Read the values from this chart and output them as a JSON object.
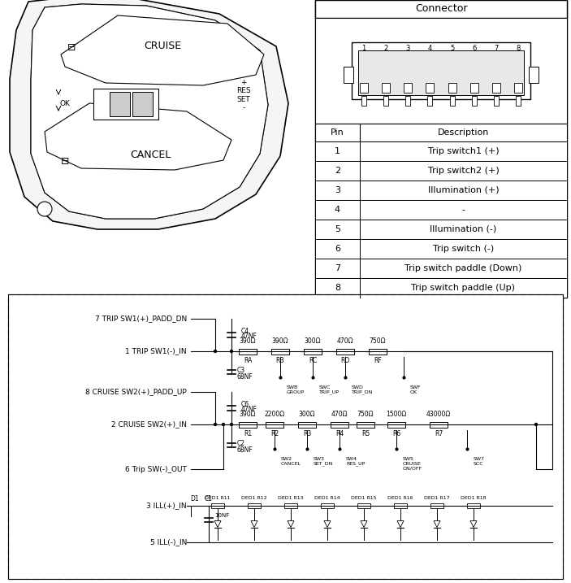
{
  "title": "",
  "bg_color": "#ffffff",
  "table_title": "Connector",
  "table_header": [
    "Pin",
    "Description"
  ],
  "table_rows": [
    [
      "1",
      "Trip switch1 (+)"
    ],
    [
      "2",
      "Trip switch2 (+)"
    ],
    [
      "3",
      "Illumination (+)"
    ],
    [
      "4",
      "-"
    ],
    [
      "5",
      "Illumination (-)"
    ],
    [
      "6",
      "Trip switch (-)"
    ],
    [
      "7",
      "Trip switch paddle (Down)"
    ],
    [
      "8",
      "Trip switch paddle (Up)"
    ]
  ],
  "circuit_labels_left": [
    "7 TRIP SW1(+)_PADD_DN",
    "1 TRIP SW1(-)_IN",
    "8 CRUISE SW2(+)_PADD_UP",
    "2 CRUISE SW2(+)_IN",
    "6 Trip SW(-)_OUT",
    "3 ILL(+)_IN",
    "5 ILL(-)_IN"
  ],
  "resistors_top": [
    "390Ω",
    "390Ω",
    "300Ω",
    "470Ω",
    "750Ω"
  ],
  "resistors_top_labels": [
    "RA",
    "RB",
    "RC",
    "RD",
    "RF"
  ],
  "resistors_bot": [
    "390Ω",
    "2200Ω",
    "300Ω",
    "470Ω",
    "750Ω",
    "1500Ω",
    "43000Ω"
  ],
  "resistors_bot_labels": [
    "R1",
    "R2",
    "R3",
    "R4",
    "R5",
    "R6",
    "R7"
  ],
  "sw_top_labels": [
    "SWB\nGROUP",
    "SWC\nTRIP_UP",
    "SWD\nTRIP_DN",
    "SWF\nOK"
  ],
  "sw_bot_labels": [
    "SW2\nCANCEL",
    "SW3\nSET_DN",
    "SW4\nRES_UP",
    "SW5\nCRUISE\nON/OFF",
    "SW7\nSCC"
  ],
  "cap_top": [
    "C4\n47NF",
    "C3\n68NF"
  ],
  "cap_bot": [
    "C6\n47NF",
    "C2\n68NF"
  ],
  "led_labels": [
    "DED1 R11",
    "DED1 R12",
    "DED1 R13",
    "DED1 R14",
    "DED1 R15",
    "DED1 R16",
    "DED1 R17",
    "DED1 R18"
  ],
  "line_color": "#000000",
  "fill_light": "#e8e8e8",
  "fill_white": "#ffffff"
}
